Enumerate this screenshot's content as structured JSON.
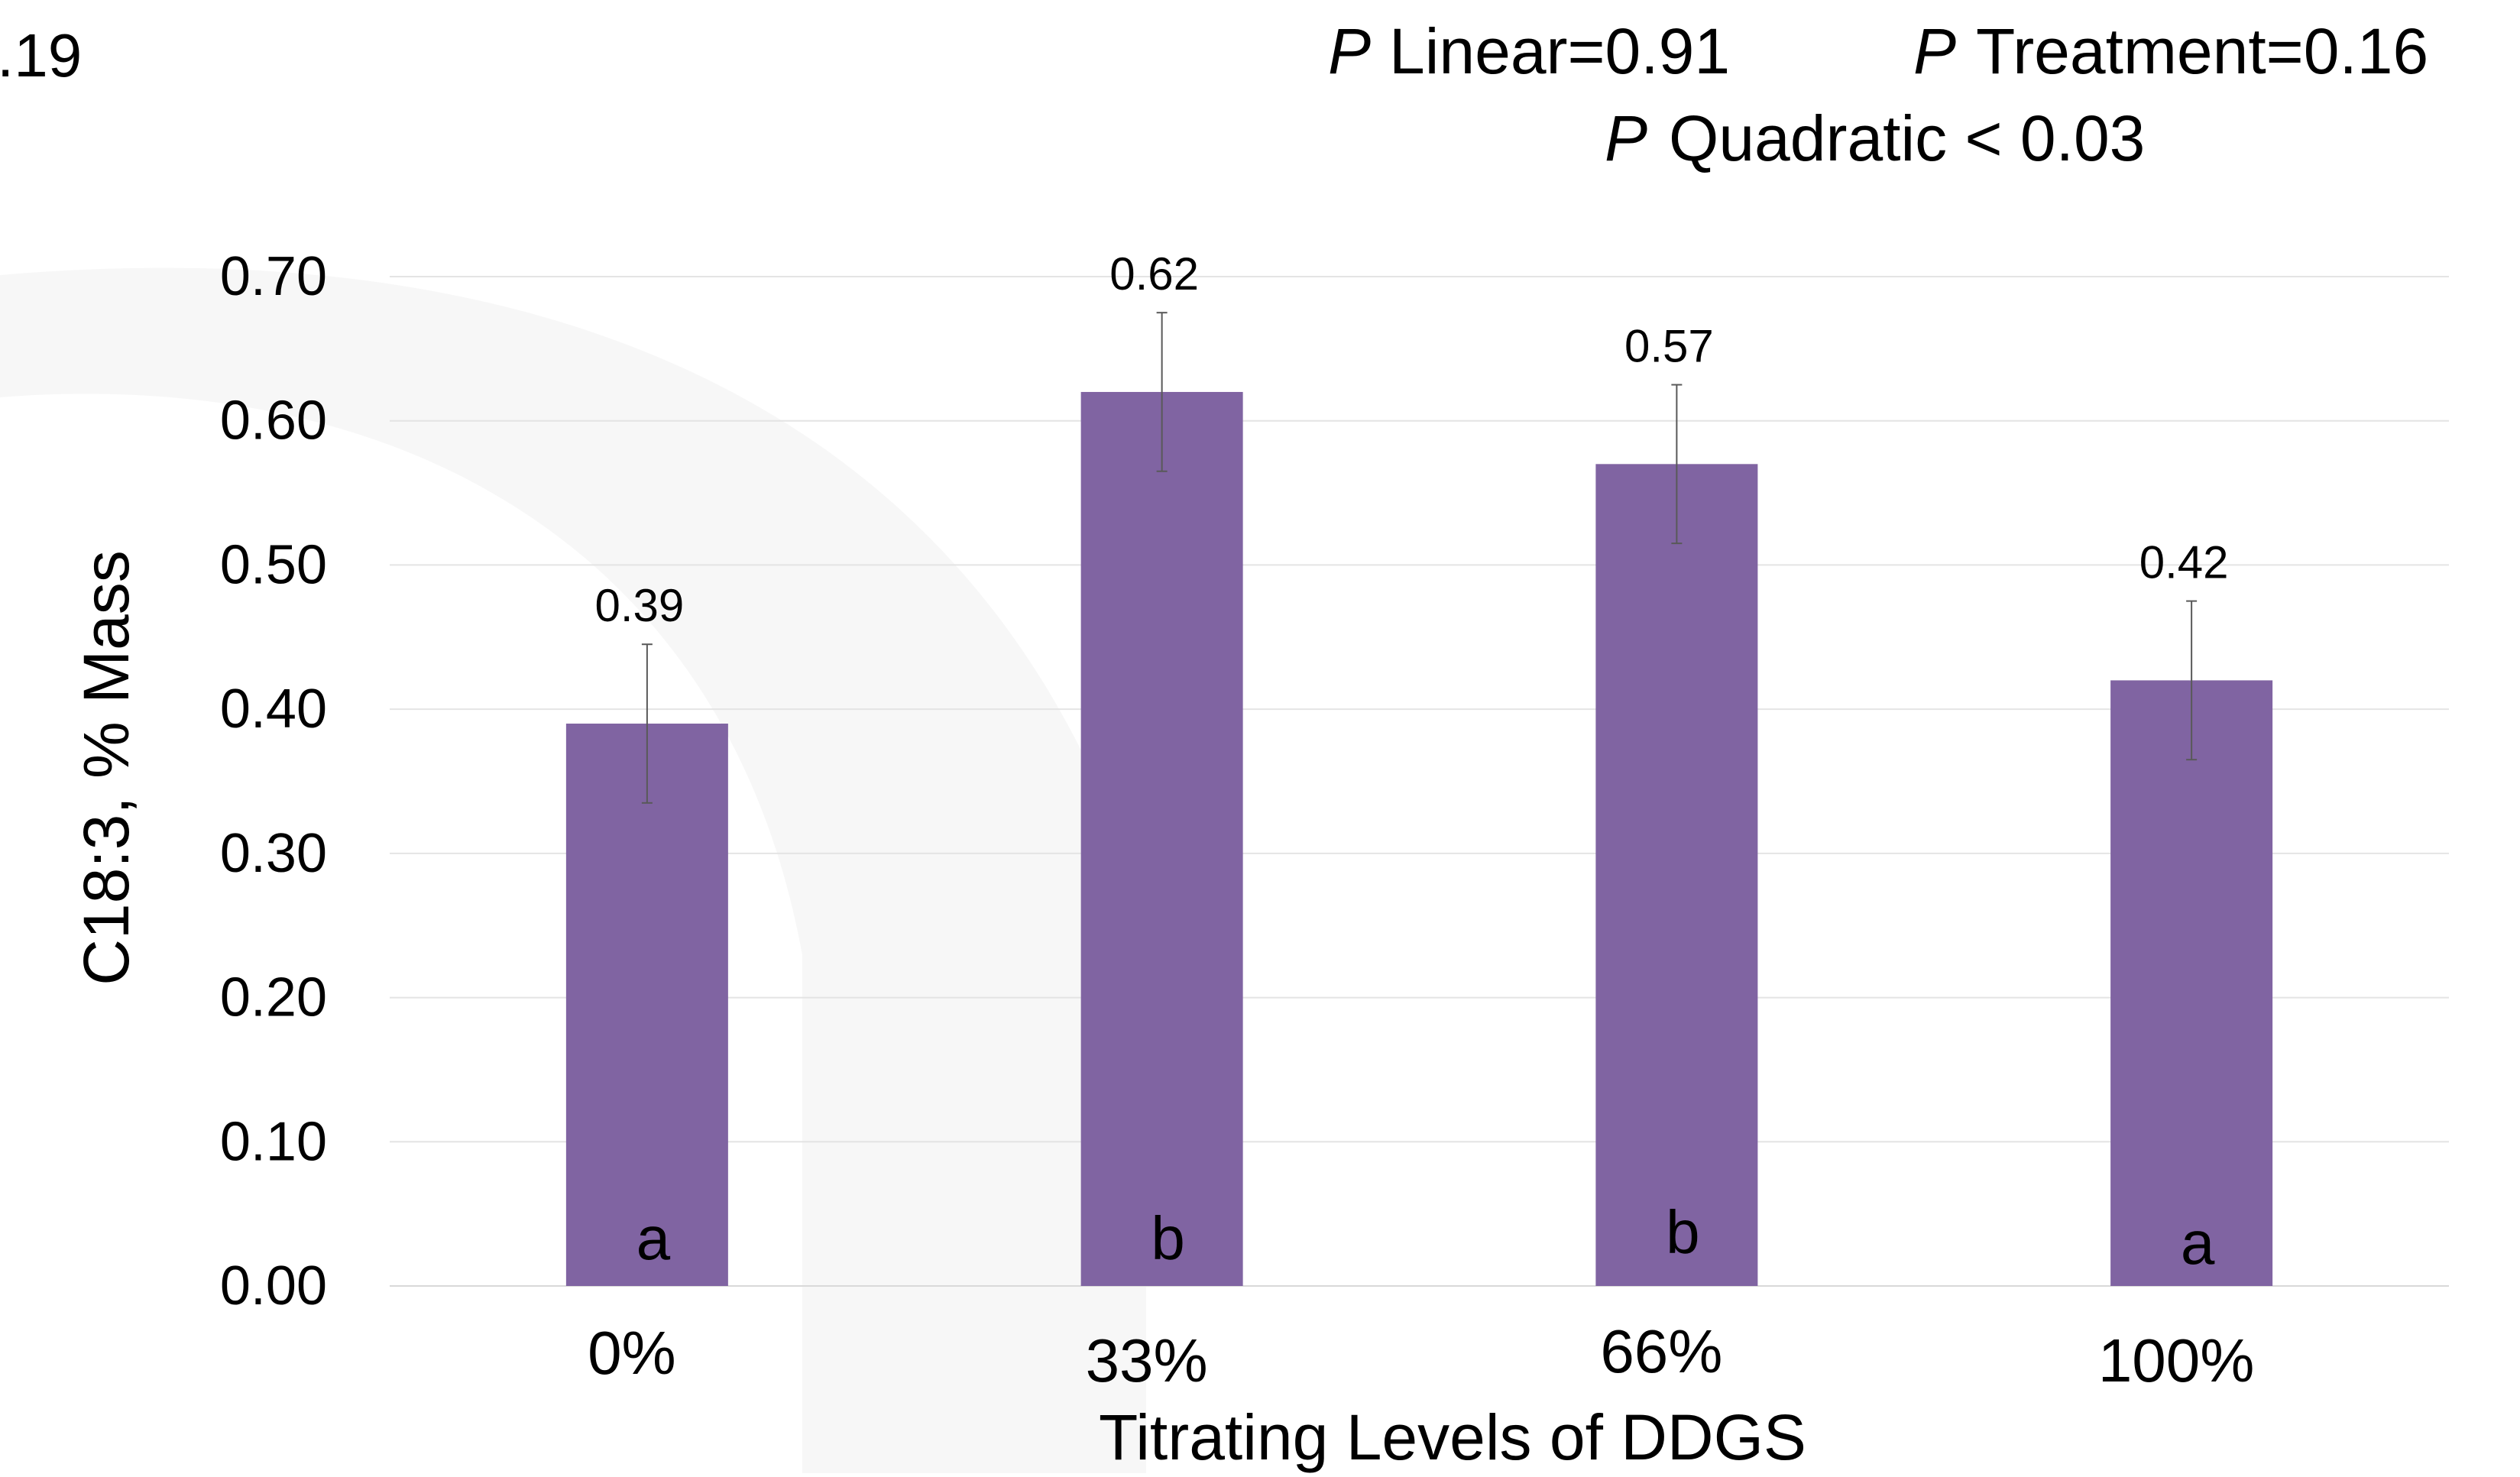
{
  "chart_data": {
    "type": "bar",
    "categories": [
      "0%",
      "33%",
      "66%",
      "100%"
    ],
    "values": [
      0.39,
      0.62,
      0.57,
      0.42
    ],
    "data_labels": [
      "0.39",
      "0.62",
      "0.57",
      "0.42"
    ],
    "error": [
      0.055,
      0.055,
      0.055,
      0.055
    ],
    "letters": [
      "a",
      "b",
      "b",
      "a"
    ],
    "title": "",
    "xlabel": "Titrating Levels of DDGS",
    "ylabel": "C18:3, % Mass",
    "ylim": [
      0,
      0.7
    ],
    "yticks": [
      "0.00",
      "0.10",
      "0.20",
      "0.30",
      "0.40",
      "0.50",
      "0.60",
      "0.70"
    ],
    "grid": true,
    "legend": "none",
    "bar_color": "#8064a2",
    "annotations": {
      "p_linear": "Linear=0.91",
      "p_treatment": "Treatment=0.16",
      "p_quadratic": "Quadratic < 0.03",
      "p_symbol": "P",
      "cropped_left_text": ".19"
    }
  }
}
